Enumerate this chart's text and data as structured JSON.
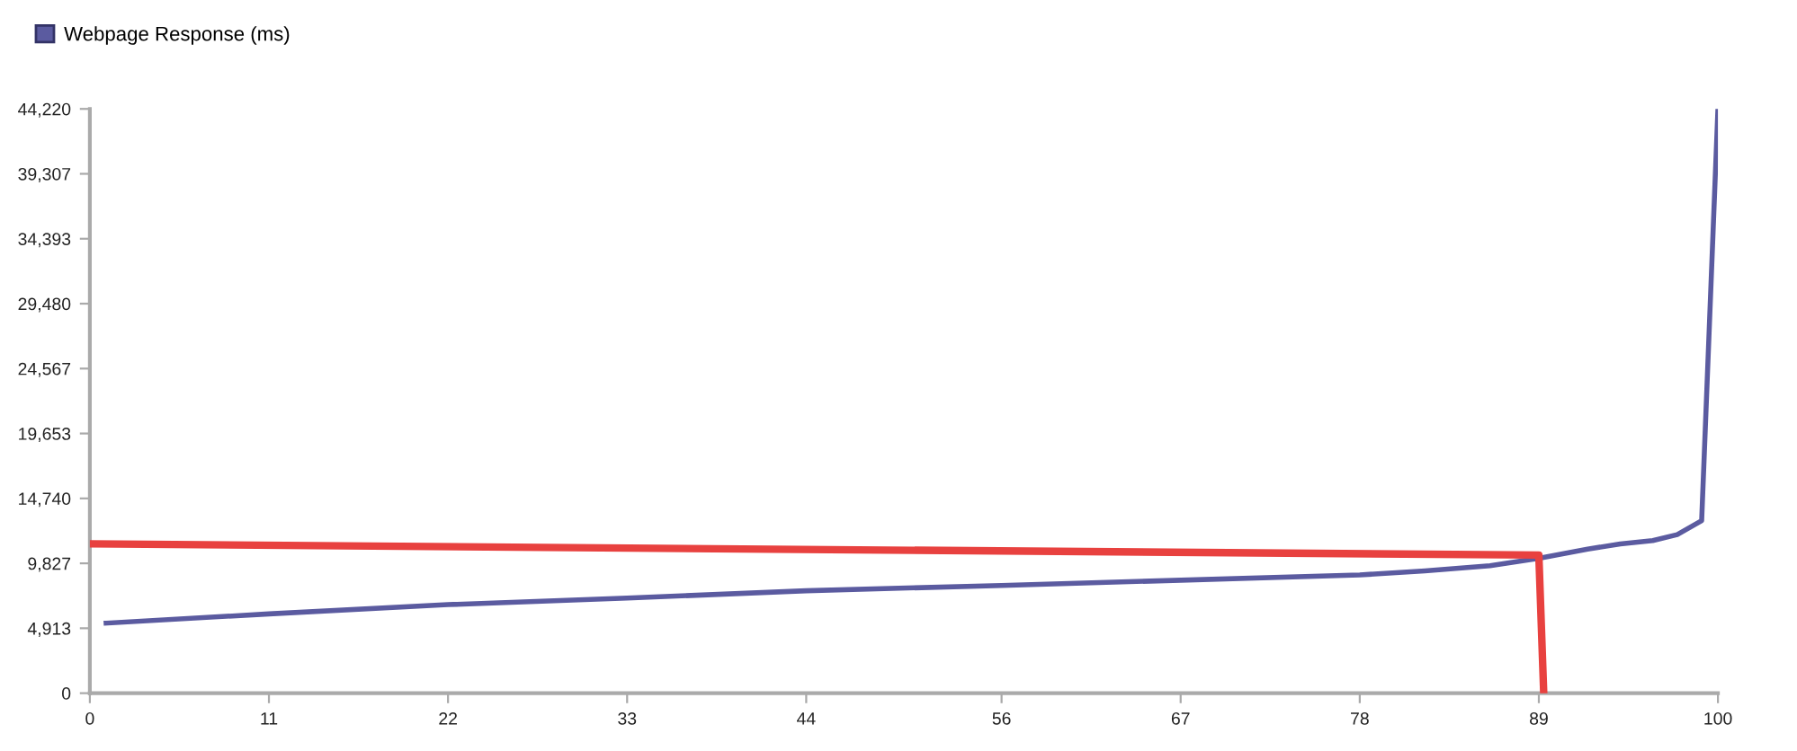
{
  "chart_data": {
    "type": "line",
    "legend": "top left",
    "grid": false,
    "marker": "none",
    "line_style": "solid",
    "xlim": [
      0,
      100
    ],
    "xticks": [
      0,
      11,
      22,
      33,
      44,
      56,
      67,
      78,
      89,
      100
    ],
    "ylim": [
      0,
      44220
    ],
    "yticks": [
      {
        "value": 0,
        "label": "0"
      },
      {
        "value": 4913,
        "label": "4,913"
      },
      {
        "value": 9827,
        "label": "9,827"
      },
      {
        "value": 14740,
        "label": "14,740"
      },
      {
        "value": 19653,
        "label": "19,653"
      },
      {
        "value": 24567,
        "label": "24,567"
      },
      {
        "value": 29480,
        "label": "29,480"
      },
      {
        "value": 34393,
        "label": "34,393"
      },
      {
        "value": 39307,
        "label": "39,307"
      },
      {
        "value": 44220,
        "label": "44,220"
      }
    ],
    "series": [
      {
        "name": "Webpage Response (ms)",
        "color": "#5b5ba0",
        "x": [
          1,
          11,
          22,
          33,
          44,
          56,
          67,
          78,
          82,
          86,
          89,
          92,
          94,
          96,
          97.5,
          99,
          100
        ],
        "values": [
          5300,
          6000,
          6700,
          7200,
          7750,
          8150,
          8550,
          8950,
          9250,
          9650,
          10200,
          10900,
          11300,
          11550,
          12000,
          13050,
          44220
        ]
      },
      {
        "color": "#e8413f",
        "x": [
          0,
          89,
          89.3
        ],
        "values": [
          11300,
          10450,
          0
        ]
      }
    ]
  }
}
